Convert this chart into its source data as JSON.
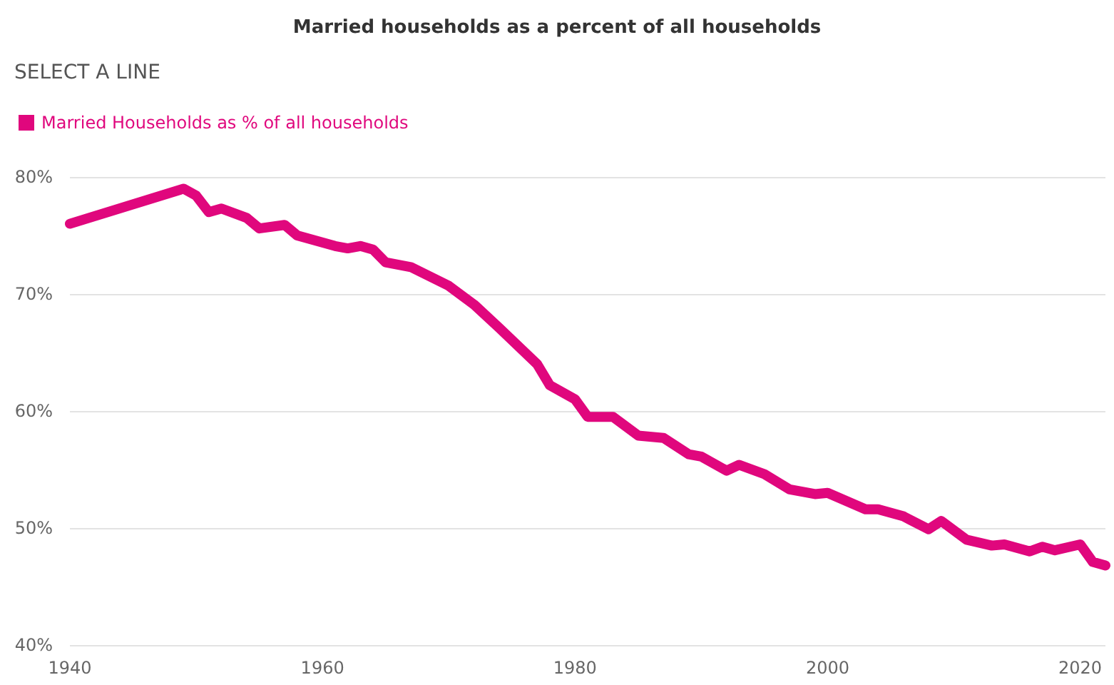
{
  "chart_data": {
    "type": "line",
    "title": "Married households as a percent of all households",
    "annotations": [
      "SELECT A LINE"
    ],
    "x": [
      1940,
      1949,
      1950,
      1951,
      1952,
      1954,
      1955,
      1957,
      1958,
      1961,
      1962,
      1963,
      1964,
      1965,
      1967,
      1970,
      1972,
      1974,
      1977,
      1978,
      1980,
      1981,
      1983,
      1985,
      1987,
      1989,
      1990,
      1992,
      1993,
      1995,
      1997,
      1999,
      2000,
      2003,
      2004,
      2006,
      2008,
      2009,
      2011,
      2013,
      2014,
      2016,
      2017,
      2018,
      2020,
      2021,
      2022
    ],
    "series": [
      {
        "name": "Married Households as % of all households",
        "color": "#e0077d",
        "values": [
          76.0,
          79.0,
          78.4,
          77.0,
          77.3,
          76.5,
          75.6,
          75.9,
          75.0,
          74.1,
          73.9,
          74.1,
          73.8,
          72.7,
          72.3,
          70.7,
          69.1,
          67.1,
          64.0,
          62.2,
          61.0,
          59.5,
          59.5,
          57.9,
          57.7,
          56.3,
          56.1,
          54.9,
          55.4,
          54.6,
          53.3,
          52.9,
          53.0,
          51.6,
          51.6,
          51.0,
          49.9,
          50.6,
          49.0,
          48.5,
          48.6,
          48.0,
          48.4,
          48.1,
          48.6,
          47.1,
          46.8
        ]
      }
    ],
    "xlim": [
      1940,
      2022
    ],
    "xticks": [
      1940,
      1960,
      1980,
      2000,
      2020
    ],
    "ylim": [
      40,
      80
    ],
    "yticks": [
      {
        "value": 40,
        "label": "40%"
      },
      {
        "value": 50,
        "label": "50%"
      },
      {
        "value": 60,
        "label": "60%"
      },
      {
        "value": 70,
        "label": "70%"
      },
      {
        "value": 80,
        "label": "80%"
      }
    ],
    "grid": "y",
    "legend": "top left",
    "line_style": "solid"
  }
}
